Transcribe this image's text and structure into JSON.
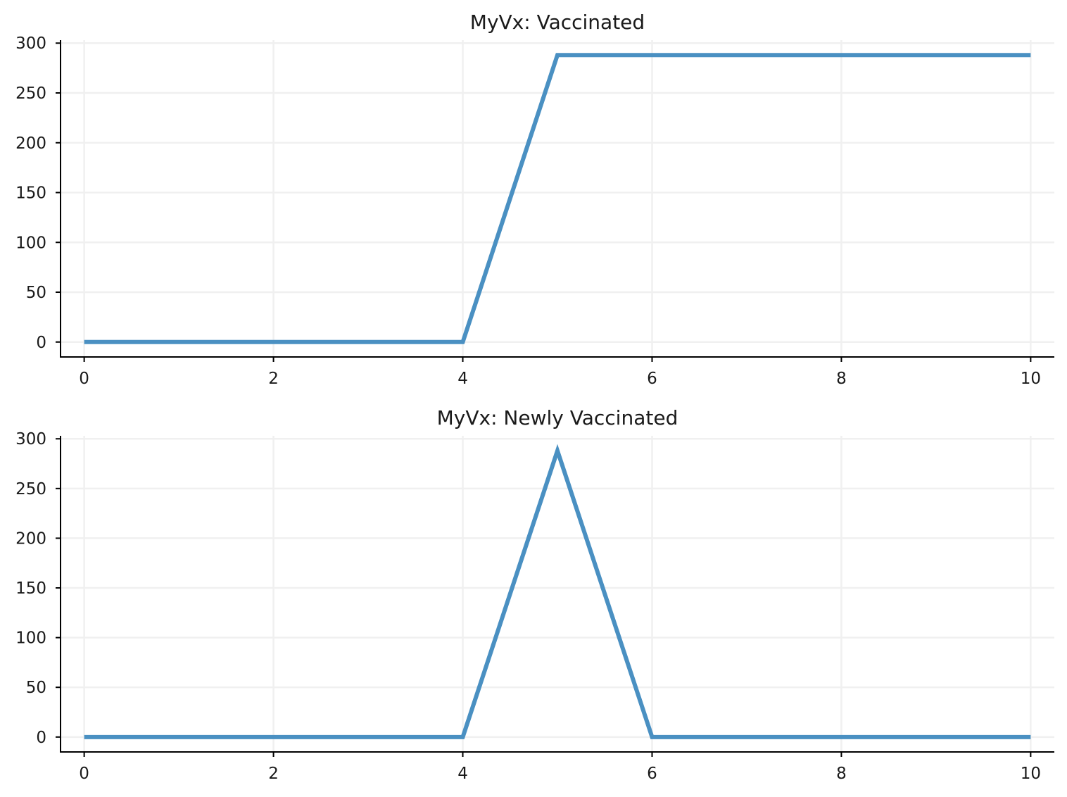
{
  "chart_data": [
    {
      "type": "line",
      "title": "MyVx: Vaccinated",
      "xlabel": "",
      "ylabel": "",
      "xlim": [
        -0.25,
        10.25
      ],
      "ylim": [
        -15,
        303
      ],
      "x_ticks": [
        0,
        2,
        4,
        6,
        8,
        10
      ],
      "y_ticks": [
        0,
        50,
        100,
        150,
        200,
        250,
        300
      ],
      "grid": true,
      "legend": "none",
      "series": [
        {
          "color": "#4a90c2",
          "x": [
            0,
            1,
            2,
            3,
            4,
            5,
            6,
            7,
            8,
            9,
            10
          ],
          "y": [
            0,
            0,
            0,
            0,
            0,
            288,
            288,
            288,
            288,
            288,
            288
          ]
        }
      ]
    },
    {
      "type": "line",
      "title": "MyVx: Newly Vaccinated",
      "xlabel": "",
      "ylabel": "",
      "xlim": [
        -0.25,
        10.25
      ],
      "ylim": [
        -15,
        303
      ],
      "x_ticks": [
        0,
        2,
        4,
        6,
        8,
        10
      ],
      "y_ticks": [
        0,
        50,
        100,
        150,
        200,
        250,
        300
      ],
      "grid": true,
      "legend": "none",
      "series": [
        {
          "color": "#4a90c2",
          "x": [
            0,
            1,
            2,
            3,
            4,
            5,
            6,
            7,
            8,
            9,
            10
          ],
          "y": [
            0,
            0,
            0,
            0,
            0,
            288,
            0,
            0,
            0,
            0,
            0
          ]
        }
      ]
    }
  ]
}
